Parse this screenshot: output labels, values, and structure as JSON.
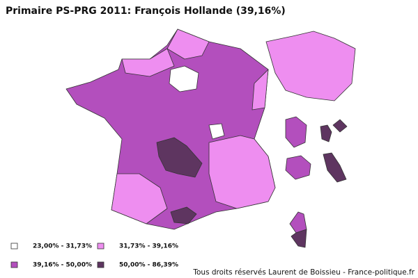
{
  "title": "Primaire PS-PRG 2011: François Hollande (39,16%)",
  "legend": [
    {
      "label": "23,00% - 31,73%",
      "color": "#ffffff"
    },
    {
      "label": "31,73% - 39,16%",
      "color": "#ee8ef0"
    },
    {
      "label": "39,16% - 50,00%",
      "color": "#b34fbd"
    },
    {
      "label": "50,00% - 86,39%",
      "color": "#5e3560"
    }
  ],
  "credit": "Tous droits réservés Laurent de Boissieu - France-politique.fr"
}
